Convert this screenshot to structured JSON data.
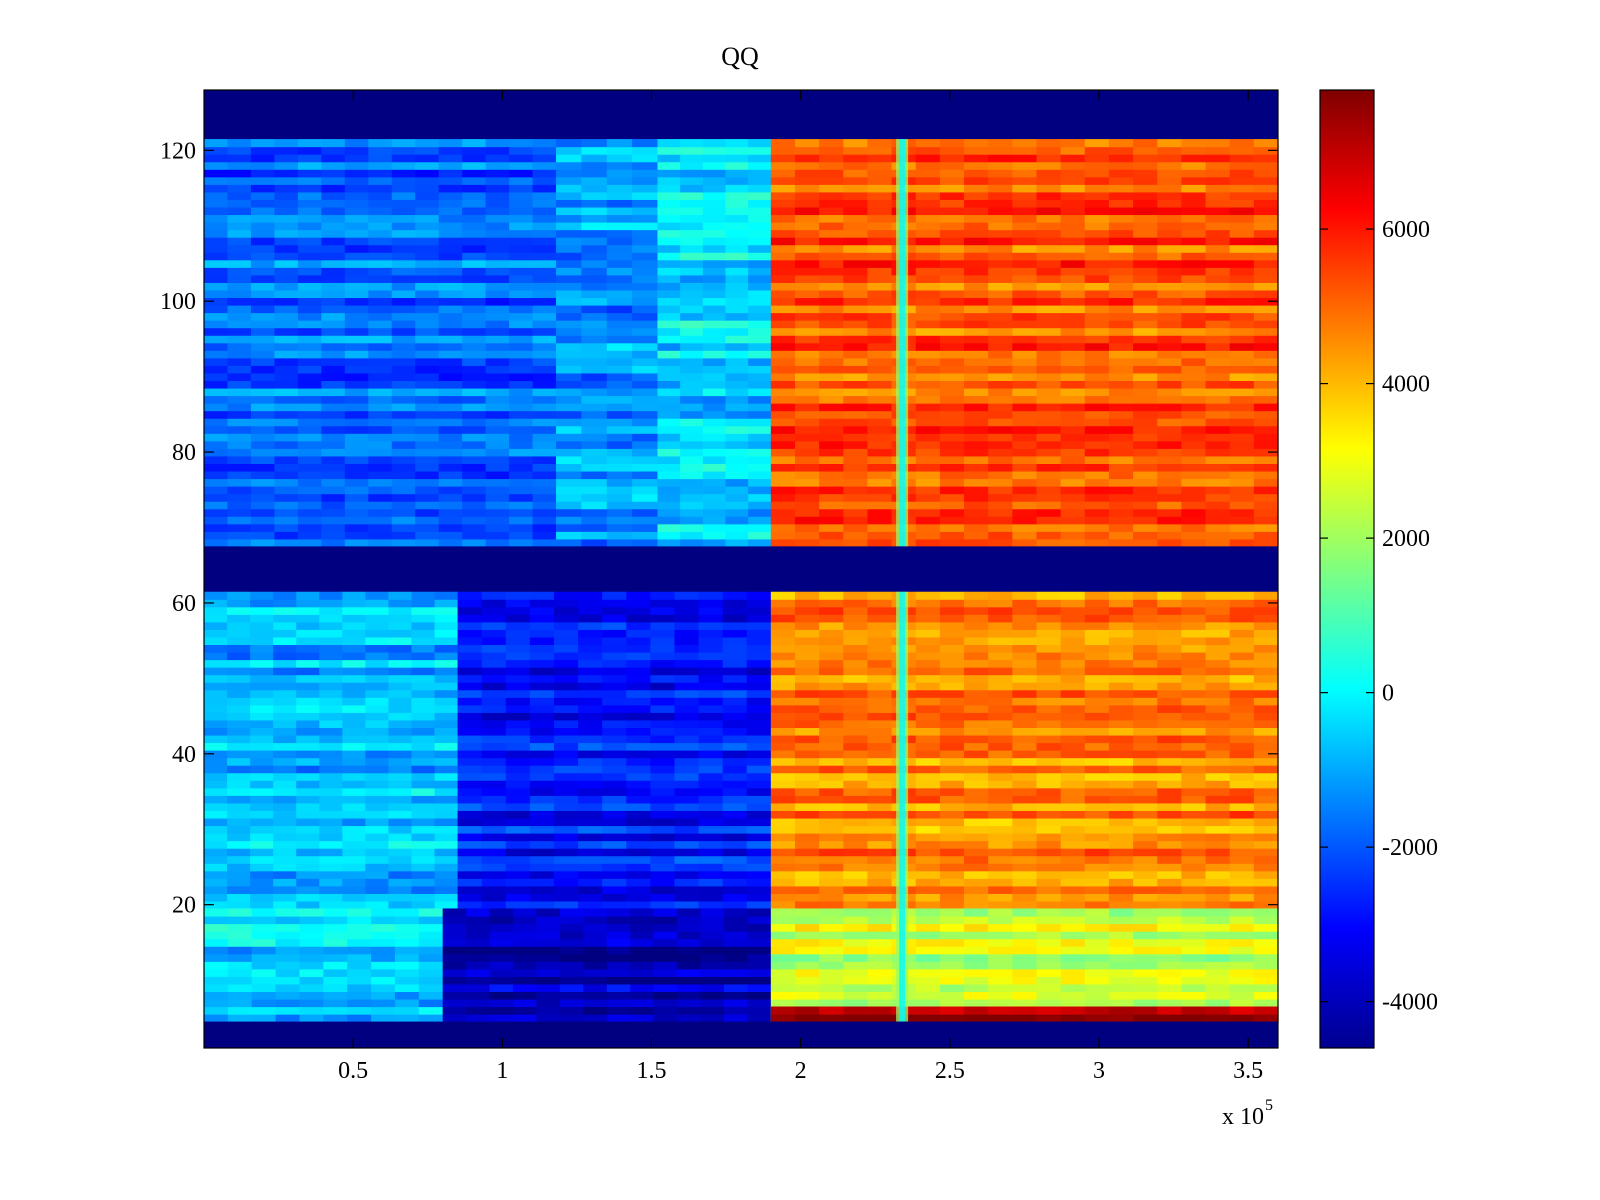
{
  "chart_data": {
    "type": "heatmap",
    "title": "QQ",
    "xlabel": "",
    "ylabel": "",
    "x_multiplier_label": "x 10",
    "x_multiplier_exponent": "5",
    "xlim": [
      0,
      3.6
    ],
    "ylim": [
      1,
      128
    ],
    "x_ticks": [
      0.5,
      1,
      1.5,
      2,
      2.5,
      3,
      3.5
    ],
    "x_tick_labels": [
      "0.5",
      "1",
      "1.5",
      "2",
      "2.5",
      "3",
      "3.5"
    ],
    "y_ticks": [
      20,
      40,
      60,
      80,
      100,
      120
    ],
    "y_tick_labels": [
      "20",
      "40",
      "60",
      "80",
      "100",
      "120"
    ],
    "colormap": "jet",
    "clim": [
      -4600,
      7800
    ],
    "colorbar_ticks": [
      -4000,
      -2000,
      0,
      2000,
      4000,
      6000
    ],
    "colorbar_tick_labels": [
      "-4000",
      "-2000",
      "0",
      "2000",
      "4000",
      "6000"
    ],
    "empty_row_bands": [
      [
        1,
        4
      ],
      [
        62,
        67
      ],
      [
        122,
        128
      ]
    ],
    "dip_column_x": 2.34,
    "regions": [
      {
        "rows": [
          68,
          121
        ],
        "x_range": [
          0,
          1.18
        ],
        "approx_value": -1800
      },
      {
        "rows": [
          68,
          121
        ],
        "x_range": [
          1.18,
          1.52
        ],
        "approx_value": -1200
      },
      {
        "rows": [
          68,
          121
        ],
        "x_range": [
          1.52,
          1.9
        ],
        "approx_value": -400
      },
      {
        "rows": [
          68,
          121
        ],
        "x_range": [
          1.9,
          3.6
        ],
        "approx_value": 5200
      },
      {
        "rows": [
          20,
          61
        ],
        "x_range": [
          0,
          0.85
        ],
        "approx_value": -800
      },
      {
        "rows": [
          20,
          61
        ],
        "x_range": [
          0.85,
          1.9
        ],
        "approx_value": -2800
      },
      {
        "rows": [
          20,
          61
        ],
        "x_range": [
          1.9,
          3.6
        ],
        "approx_value": 4600
      },
      {
        "rows": [
          5,
          19
        ],
        "x_range": [
          0,
          0.8
        ],
        "approx_value": -500
      },
      {
        "rows": [
          5,
          19
        ],
        "x_range": [
          0.8,
          1.9
        ],
        "approx_value": -3800
      },
      {
        "rows": [
          5,
          19
        ],
        "x_range": [
          1.9,
          3.6
        ],
        "approx_value": 2500
      },
      {
        "rows": [
          5,
          6
        ],
        "x_range": [
          1.9,
          3.6
        ],
        "approx_value": 7200
      }
    ]
  }
}
